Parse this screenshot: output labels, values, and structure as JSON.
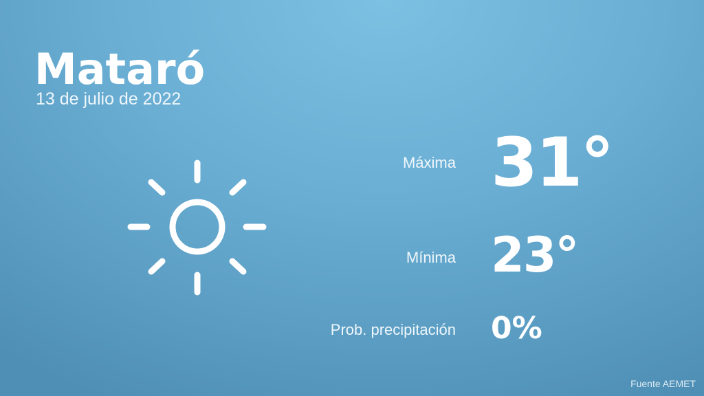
{
  "city": "Mataró",
  "date": "13 de julio de 2022",
  "weather_icon": "sun-icon",
  "max": {
    "label": "Máxima",
    "value": "31°"
  },
  "min": {
    "label": "Mínima",
    "value": "23°"
  },
  "precip": {
    "label": "Prob. precipitación",
    "value": "0%"
  },
  "source": "Fuente AEMET"
}
